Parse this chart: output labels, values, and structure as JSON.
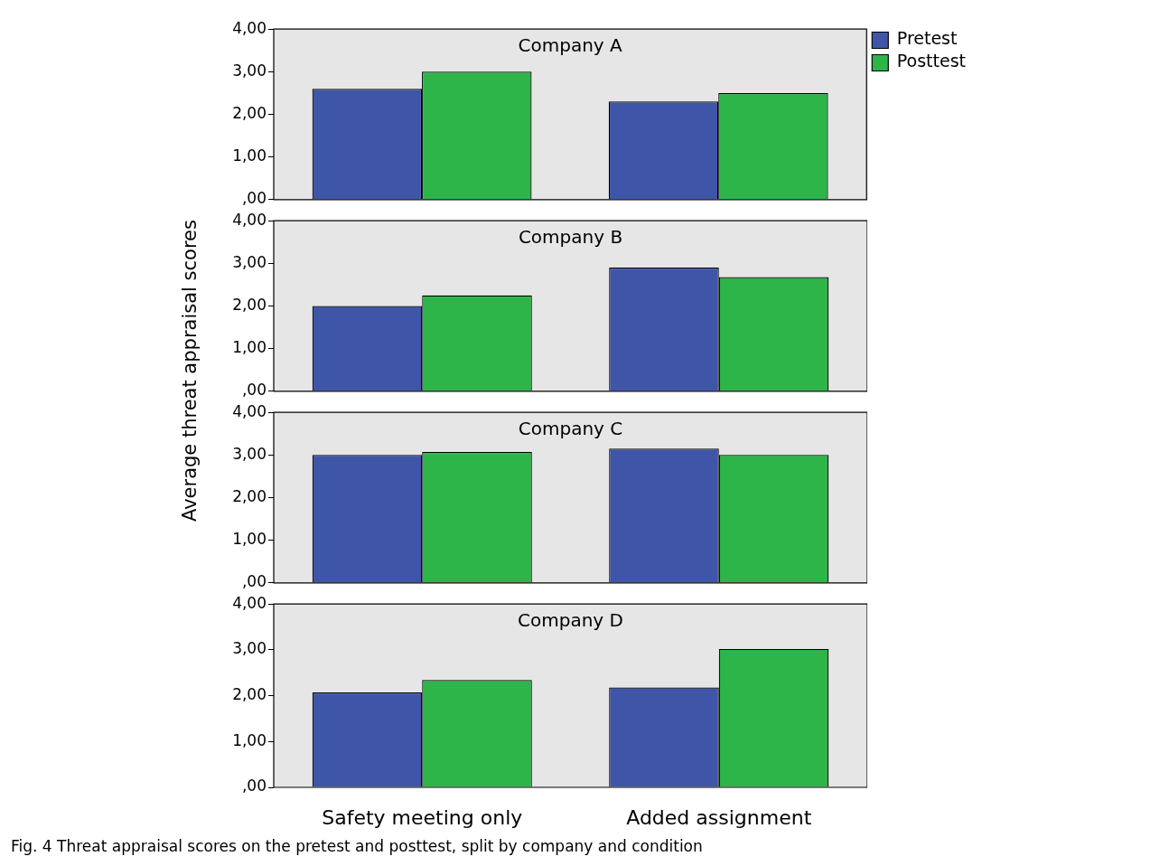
{
  "chart_data": [
    {
      "type": "bar",
      "title": "Company A",
      "ylabel": "Average threat appraisal scores",
      "categories": [
        null,
        null
      ],
      "series": [
        {
          "name": "Pretest",
          "color": "#3f56a8",
          "values": [
            2.6,
            2.3
          ]
        },
        {
          "name": "Posttest",
          "color": "#2db54a",
          "values": [
            3.0,
            2.5
          ]
        }
      ],
      "ylim": [
        0,
        4
      ],
      "yticks": [
        {
          "value": 0,
          "label": ",00"
        },
        {
          "value": 1,
          "label": "1,00"
        },
        {
          "value": 2,
          "label": "2,00"
        },
        {
          "value": 3,
          "label": "3,00"
        },
        {
          "value": 4,
          "label": "4,00"
        }
      ],
      "tick_labels": "y",
      "legend": "top right"
    },
    {
      "type": "bar",
      "title": "Company B",
      "categories": [
        null,
        null
      ],
      "series": [
        {
          "color": "#3f56a8",
          "values": [
            2.0,
            2.9
          ]
        },
        {
          "color": "#2db54a",
          "values": [
            2.25,
            2.68
          ]
        }
      ],
      "ylim": [
        0,
        4
      ],
      "yticks": [
        {
          "value": 0,
          "label": ",00"
        },
        {
          "value": 1,
          "label": "1,00"
        },
        {
          "value": 2,
          "label": "2,00"
        },
        {
          "value": 3,
          "label": "3,00"
        },
        {
          "value": 4,
          "label": "4,00"
        }
      ],
      "tick_labels": "y"
    },
    {
      "type": "bar",
      "title": "Company C",
      "categories": [
        null,
        null
      ],
      "series": [
        {
          "color": "#3f56a8",
          "values": [
            3.0,
            3.15
          ]
        },
        {
          "color": "#2db54a",
          "values": [
            3.07,
            3.0
          ]
        }
      ],
      "ylim": [
        0,
        4
      ],
      "yticks": [
        {
          "value": 0,
          "label": ",00"
        },
        {
          "value": 1,
          "label": "1,00"
        },
        {
          "value": 2,
          "label": "2,00"
        },
        {
          "value": 3,
          "label": "3,00"
        },
        {
          "value": 4,
          "label": "4,00"
        }
      ],
      "tick_labels": "y"
    },
    {
      "type": "bar",
      "title": "Company D",
      "categories": [
        "Safety meeting only",
        "Added assignment"
      ],
      "series": [
        {
          "color": "#3f56a8",
          "values": [
            2.07,
            2.18
          ]
        },
        {
          "color": "#2db54a",
          "values": [
            2.34,
            3.02
          ]
        }
      ],
      "ylim": [
        0,
        4
      ],
      "yticks": [
        {
          "value": 0,
          "label": ",00"
        },
        {
          "value": 1,
          "label": "1,00"
        },
        {
          "value": 2,
          "label": "2,00"
        },
        {
          "value": 3,
          "label": "3,00"
        },
        {
          "value": 4,
          "label": "4,00"
        }
      ],
      "annotations": [
        "Fig. 4  Threat appraisal scores on the pretest and posttest, split by company and condition"
      ]
    }
  ]
}
